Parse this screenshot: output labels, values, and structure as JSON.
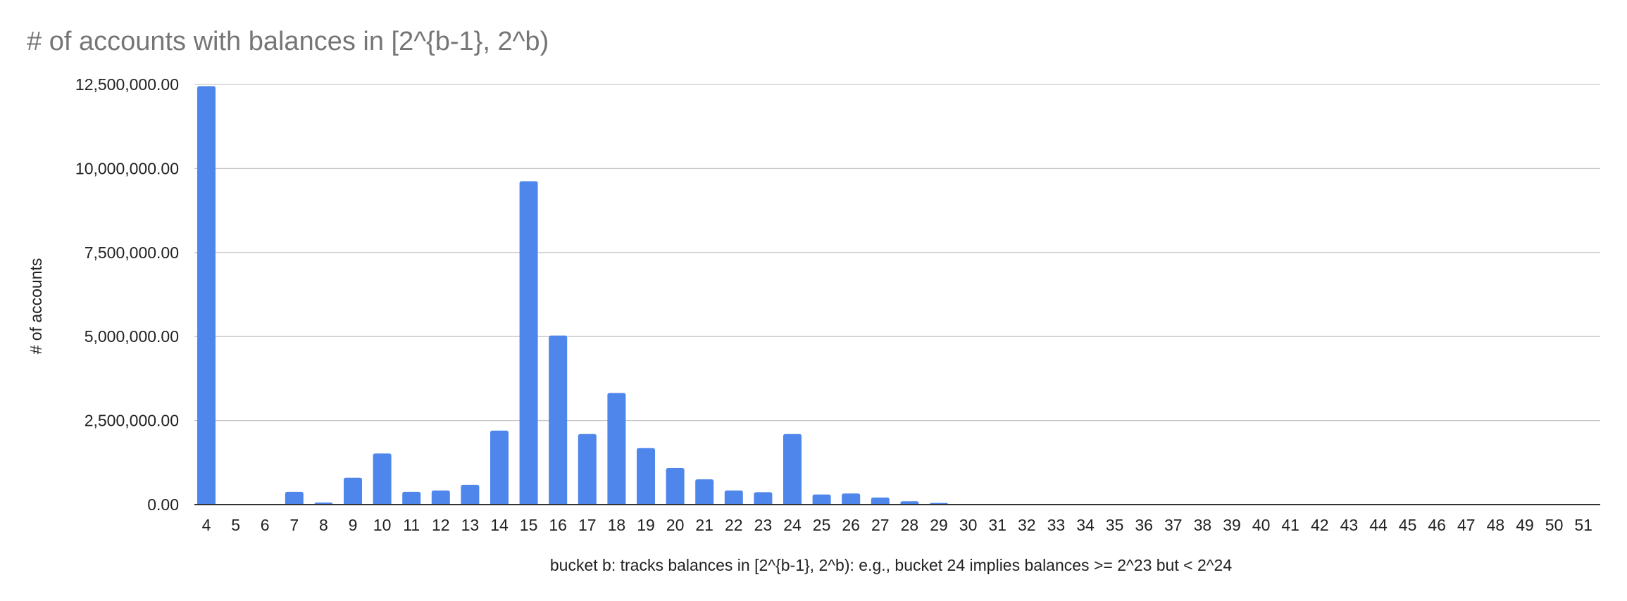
{
  "chart_data": {
    "type": "bar",
    "title": "# of accounts with balances in [2^{b-1}, 2^b)",
    "xlabel": "bucket b: tracks balances in [2^{b-1}, 2^b): e.g., bucket 24 implies balances >= 2^23 but < 2^24",
    "ylabel": "# of accounts",
    "ylim": [
      0,
      12500000
    ],
    "yticks": [
      {
        "value": 0,
        "label": "0.00"
      },
      {
        "value": 2500000,
        "label": "2,500,000.00"
      },
      {
        "value": 5000000,
        "label": "5,000,000.00"
      },
      {
        "value": 7500000,
        "label": "7,500,000.00"
      },
      {
        "value": 10000000,
        "label": "10,000,000.00"
      },
      {
        "value": 12500000,
        "label": "12,500,000.00"
      }
    ],
    "grid": true,
    "legend": "none",
    "bar_color": "#4f86ec",
    "categories": [
      "4",
      "5",
      "6",
      "7",
      "8",
      "9",
      "10",
      "11",
      "12",
      "13",
      "14",
      "15",
      "16",
      "17",
      "18",
      "19",
      "20",
      "21",
      "22",
      "23",
      "24",
      "25",
      "26",
      "27",
      "28",
      "29",
      "30",
      "31",
      "32",
      "33",
      "34",
      "35",
      "36",
      "37",
      "38",
      "39",
      "40",
      "41",
      "42",
      "43",
      "44",
      "45",
      "46",
      "47",
      "48",
      "49",
      "50",
      "51"
    ],
    "values": [
      12450000,
      5000,
      10000,
      380000,
      60000,
      800000,
      1520000,
      380000,
      420000,
      590000,
      2200000,
      9620000,
      5030000,
      2100000,
      3320000,
      1680000,
      1090000,
      750000,
      420000,
      370000,
      2100000,
      300000,
      330000,
      210000,
      100000,
      50000,
      20000,
      12000,
      8000,
      6000,
      5000,
      5000,
      6000,
      4000,
      1000,
      500,
      300,
      200,
      100,
      50,
      30,
      20,
      10,
      5,
      5,
      2,
      1,
      1
    ]
  }
}
